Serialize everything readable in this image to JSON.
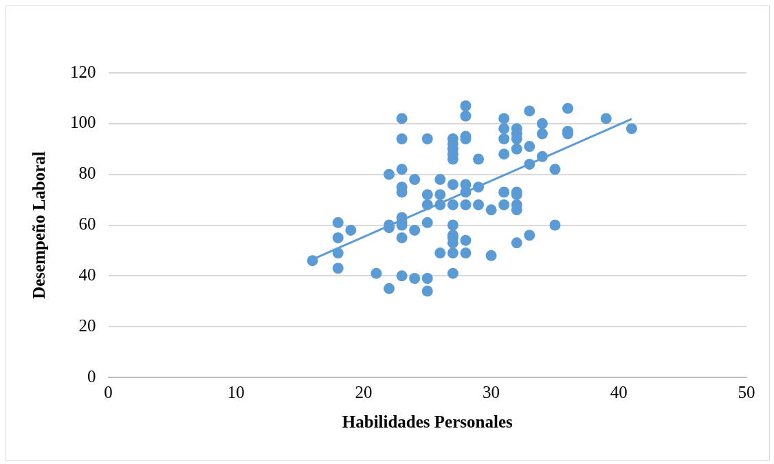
{
  "chart_data": {
    "type": "scatter",
    "xlabel": "Habilidades Personales",
    "ylabel": "Desempeño Laboral",
    "series": [
      {
        "color": "#5b9bd5",
        "x": [
          16,
          18,
          18,
          18,
          18,
          19,
          21,
          22,
          22,
          22,
          22,
          23,
          23,
          23,
          23,
          23,
          23,
          23,
          23,
          23,
          23,
          24,
          24,
          24,
          25,
          25,
          25,
          25,
          25,
          25,
          26,
          26,
          26,
          26,
          27,
          27,
          27,
          27,
          27,
          27,
          27,
          27,
          27,
          27,
          27,
          27,
          27,
          28,
          28,
          28,
          28,
          28,
          28,
          28,
          28,
          28,
          29,
          29,
          29,
          30,
          30,
          31,
          31,
          31,
          31,
          31,
          31,
          32,
          32,
          32,
          32,
          32,
          32,
          32,
          32,
          32,
          33,
          33,
          33,
          33,
          34,
          34,
          34,
          35,
          35,
          36,
          36,
          36,
          39,
          41
        ],
        "values": [
          46,
          61,
          55,
          49,
          43,
          58,
          41,
          80,
          60,
          59,
          35,
          102,
          94,
          82,
          75,
          73,
          63,
          61,
          60,
          55,
          40,
          78,
          58,
          39,
          94,
          72,
          68,
          61,
          39,
          34,
          78,
          72,
          68,
          49,
          94,
          92,
          90,
          88,
          86,
          76,
          68,
          60,
          56,
          55,
          53,
          49,
          41,
          107,
          103,
          95,
          94,
          76,
          73,
          68,
          54,
          49,
          86,
          75,
          68,
          66,
          48,
          102,
          98,
          94,
          88,
          73,
          68,
          98,
          96,
          94,
          90,
          73,
          72,
          68,
          66,
          53,
          105,
          91,
          84,
          56,
          100,
          96,
          87,
          82,
          60,
          106,
          97,
          96,
          102,
          98
        ]
      },
      {
        "type": "line",
        "marker": "none",
        "color": "#5b9bd5",
        "x": [
          16,
          41
        ],
        "values": [
          46.5,
          101.8
        ]
      }
    ],
    "xlim": [
      0,
      50
    ],
    "xticks": [
      0,
      10,
      20,
      30,
      40,
      50
    ],
    "ylim": [
      0,
      120
    ],
    "yticks": [
      0,
      20,
      40,
      60,
      80,
      100,
      120
    ],
    "grid": "y",
    "legend": false,
    "marker": "circle",
    "line_style": "solid"
  }
}
